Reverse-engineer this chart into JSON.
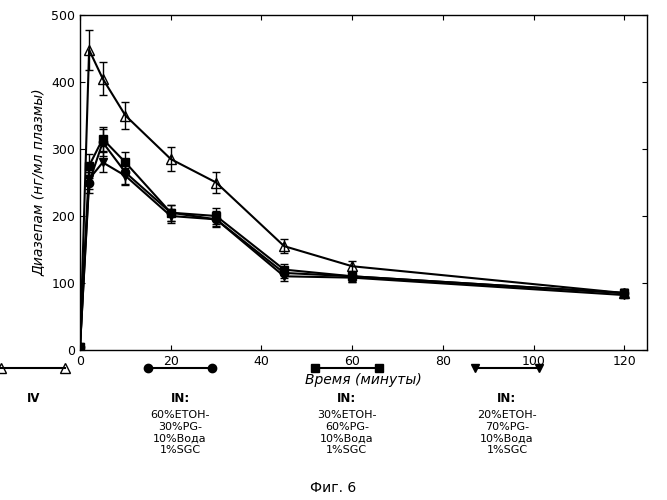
{
  "title": "",
  "xlabel": "Время (минуты)",
  "ylabel": "Диазепам (нг/мл плазмы)",
  "caption": "Фиг. 6",
  "xlim": [
    0,
    125
  ],
  "ylim": [
    0,
    500
  ],
  "xticks": [
    0,
    20,
    40,
    60,
    80,
    100,
    120
  ],
  "yticks": [
    0,
    100,
    200,
    300,
    400,
    500
  ],
  "series": [
    {
      "label": "IV",
      "label2": "",
      "x": [
        0,
        2,
        5,
        10,
        20,
        30,
        45,
        60,
        120
      ],
      "y": [
        5,
        448,
        405,
        350,
        285,
        250,
        155,
        125,
        85
      ],
      "yerr": [
        2,
        30,
        25,
        20,
        18,
        15,
        10,
        8,
        6
      ],
      "color": "#000000",
      "marker": "^",
      "marker_fill": "none",
      "linestyle": "-",
      "linewidth": 1.5,
      "markersize": 7
    },
    {
      "label": "IN:",
      "label2": "60%ETOH-\n30%PG-\n10%Вода\n1%SGC",
      "x": [
        0,
        2,
        5,
        10,
        20,
        30,
        45,
        60,
        120
      ],
      "y": [
        5,
        250,
        310,
        265,
        205,
        195,
        115,
        110,
        85
      ],
      "yerr": [
        2,
        15,
        20,
        18,
        12,
        12,
        8,
        8,
        6
      ],
      "color": "#000000",
      "marker": "o",
      "marker_fill": "full",
      "linestyle": "-",
      "linewidth": 1.5,
      "markersize": 6
    },
    {
      "label": "IN:",
      "label2": "30%ETOH-\n60%PG-\n10%Вода\n1%SGC",
      "x": [
        0,
        2,
        5,
        10,
        20,
        30,
        45,
        60,
        120
      ],
      "y": [
        5,
        275,
        315,
        280,
        205,
        200,
        120,
        110,
        85
      ],
      "yerr": [
        2,
        18,
        18,
        15,
        12,
        12,
        8,
        7,
        6
      ],
      "color": "#000000",
      "marker": "s",
      "marker_fill": "full",
      "linestyle": "-",
      "linewidth": 1.5,
      "markersize": 6
    },
    {
      "label": "IN:",
      "label2": "20%ETOH-\n70%PG-\n10%Вода\n1%SGC",
      "x": [
        0,
        2,
        5,
        10,
        20,
        30,
        45,
        60,
        120
      ],
      "y": [
        5,
        255,
        280,
        260,
        200,
        195,
        110,
        108,
        82
      ],
      "yerr": [
        2,
        15,
        15,
        12,
        10,
        10,
        7,
        6,
        5
      ],
      "color": "#000000",
      "marker": "v",
      "marker_fill": "full",
      "linestyle": "-",
      "linewidth": 1.5,
      "markersize": 6
    }
  ],
  "background_color": "#ffffff",
  "fig_caption_fontsize": 10,
  "axis_label_fontsize": 10,
  "tick_fontsize": 9,
  "legend_fontsize": 8.5
}
